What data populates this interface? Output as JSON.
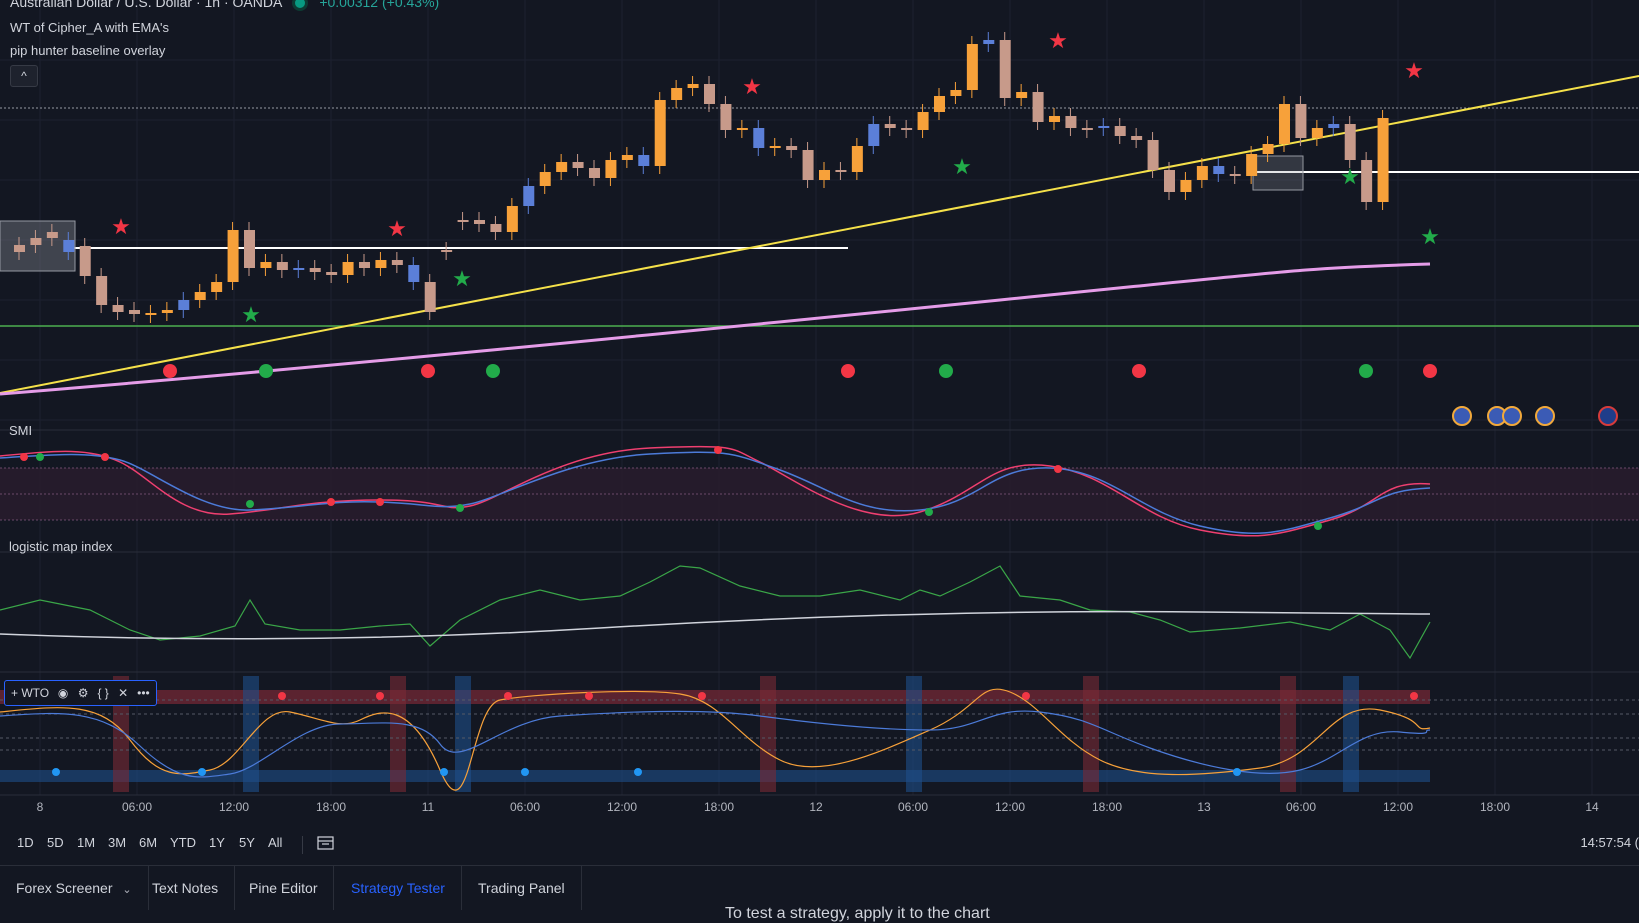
{
  "header": {
    "symbol_title": "Australian Dollar / U.S. Dollar · 1h · OANDA",
    "change": "+0.00312 (+0.43%)",
    "indicators": [
      "WT of Cipher_A with EMA's",
      "pip hunter baseline overlay"
    ],
    "collapse_icon": "^"
  },
  "panes": {
    "smi_label": "SMI",
    "logistic_label": "logistic map index"
  },
  "wto_toolbar": {
    "label": "+ WTO",
    "icons": [
      "eye-icon",
      "gear-icon",
      "braces-icon",
      "close-icon",
      "more-icon"
    ],
    "glyphs": [
      "◉",
      "⚙",
      "{ }",
      "✕",
      "•••"
    ]
  },
  "time_axis": [
    "8",
    "06:00",
    "12:00",
    "18:00",
    "11",
    "06:00",
    "12:00",
    "18:00",
    "12",
    "06:00",
    "12:00",
    "18:00",
    "13",
    "06:00",
    "12:00",
    "18:00",
    "14"
  ],
  "range_buttons": [
    "1D",
    "5D",
    "1M",
    "3M",
    "6M",
    "YTD",
    "1Y",
    "5Y",
    "All"
  ],
  "clock": "14:57:54 (",
  "bottom_tabs": [
    "Forex Screener",
    "Text Notes",
    "Pine Editor",
    "Strategy Tester",
    "Trading Panel"
  ],
  "active_tab": "Strategy Tester",
  "bottom_panel_text": "To test a strategy, apply it to the chart",
  "colors": {
    "background": "#131722",
    "up_candle": "#f7a13a",
    "down_candle": "#c79a8a",
    "blue_candle": "#5b7fd8",
    "trend_line": "#f5e14a",
    "ema": "#e59ce8",
    "support": "#4caf50",
    "accent": "#2962ff"
  }
}
